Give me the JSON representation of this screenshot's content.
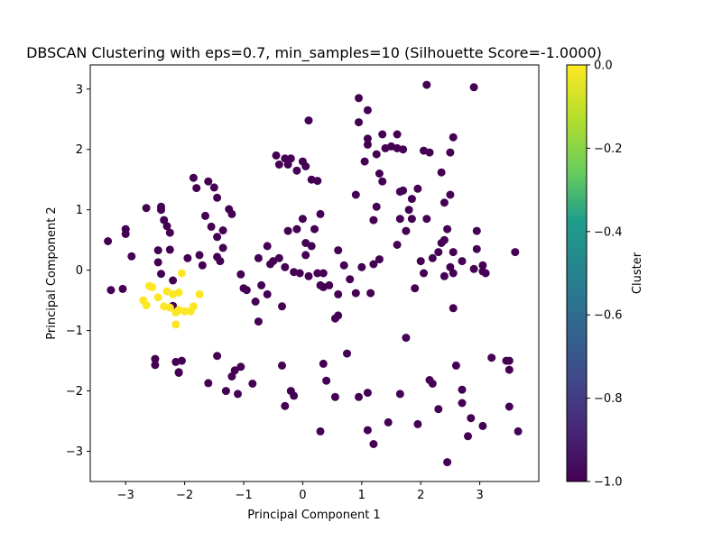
{
  "chart_data": {
    "type": "scatter",
    "title": "DBSCAN Clustering with eps=0.7, min_samples=10 (Silhouette Score=-1.0000)",
    "xlabel": "Principal Component 1",
    "ylabel": "Principal Component 2",
    "xlim": [
      -3.6,
      4.0
    ],
    "ylim": [
      -3.5,
      3.4
    ],
    "xticks": [
      -3,
      -2,
      -1,
      0,
      1,
      2,
      3
    ],
    "xtick_labels": [
      "−3",
      "−2",
      "−1",
      "0",
      "1",
      "2",
      "3"
    ],
    "yticks": [
      -3,
      -2,
      -1,
      0,
      1,
      2,
      3
    ],
    "ytick_labels": [
      "−3",
      "−2",
      "−1",
      "0",
      "1",
      "2",
      "3"
    ],
    "grid": false,
    "colorbar": {
      "label": "Cluster",
      "range": [
        -1.0,
        0.0
      ],
      "ticks": [
        -1.0,
        -0.8,
        -0.6,
        -0.4,
        -0.2,
        0.0
      ],
      "tick_labels": [
        "−1.0",
        "−0.8",
        "−0.6",
        "−0.4",
        "−0.2",
        "0.0"
      ],
      "colormap": [
        "#440154",
        "#482777",
        "#3f4a8a",
        "#31678e",
        "#26838f",
        "#1f9d8a",
        "#6cce5a",
        "#b6de2b",
        "#fee825"
      ]
    },
    "colors": {
      "noise": "#440154",
      "cluster0": "#fde725"
    },
    "series": [
      {
        "cluster": -1,
        "color": "#440154",
        "points": [
          [
            -3.3,
            0.48
          ],
          [
            -3.25,
            -0.33
          ],
          [
            -3.05,
            -0.31
          ],
          [
            -3.0,
            0.6
          ],
          [
            -3.0,
            0.68
          ],
          [
            -2.9,
            0.23
          ],
          [
            -2.65,
            1.03
          ],
          [
            -2.5,
            -1.47
          ],
          [
            -2.5,
            -1.57
          ],
          [
            -2.45,
            0.33
          ],
          [
            -2.45,
            0.13
          ],
          [
            -2.4,
            1.05
          ],
          [
            -2.4,
            1.0
          ],
          [
            -2.4,
            -0.06
          ],
          [
            -2.35,
            0.83
          ],
          [
            -2.3,
            0.73
          ],
          [
            -2.25,
            0.62
          ],
          [
            -2.25,
            0.34
          ],
          [
            -2.2,
            -0.17
          ],
          [
            -2.2,
            -0.59
          ],
          [
            -2.15,
            -1.52
          ],
          [
            -2.1,
            -1.7
          ],
          [
            -2.1,
            -1.69
          ],
          [
            -2.05,
            -1.5
          ],
          [
            -1.95,
            0.2
          ],
          [
            -1.85,
            1.53
          ],
          [
            -1.8,
            1.36
          ],
          [
            -1.75,
            0.25
          ],
          [
            -1.7,
            0.08
          ],
          [
            -1.65,
            0.9
          ],
          [
            -1.6,
            1.47
          ],
          [
            -1.6,
            -1.87
          ],
          [
            -1.55,
            0.72
          ],
          [
            -1.5,
            1.37
          ],
          [
            -1.45,
            1.2
          ],
          [
            -1.45,
            0.55
          ],
          [
            -1.45,
            -1.42
          ],
          [
            -1.45,
            0.22
          ],
          [
            -1.4,
            0.15
          ],
          [
            -1.35,
            0.37
          ],
          [
            -1.35,
            0.66
          ],
          [
            -1.3,
            -2.0
          ],
          [
            -1.25,
            1.01
          ],
          [
            -1.2,
            0.93
          ],
          [
            -1.2,
            -1.76
          ],
          [
            -1.15,
            -1.66
          ],
          [
            -1.1,
            -2.05
          ],
          [
            -1.05,
            -1.6
          ],
          [
            -1.05,
            -0.07
          ],
          [
            -1.0,
            -0.3
          ],
          [
            -0.95,
            -0.33
          ],
          [
            -0.85,
            -1.88
          ],
          [
            -0.8,
            -0.52
          ],
          [
            -0.75,
            -0.85
          ],
          [
            -0.75,
            0.2
          ],
          [
            -0.7,
            -0.25
          ],
          [
            -0.6,
            -0.4
          ],
          [
            -0.6,
            0.4
          ],
          [
            -0.55,
            0.1
          ],
          [
            -0.5,
            0.15
          ],
          [
            -0.45,
            1.9
          ],
          [
            -0.4,
            1.75
          ],
          [
            -0.4,
            0.2
          ],
          [
            -0.35,
            -1.58
          ],
          [
            -0.35,
            -0.6
          ],
          [
            -0.3,
            1.85
          ],
          [
            -0.3,
            -2.25
          ],
          [
            -0.25,
            1.75
          ],
          [
            -0.25,
            0.65
          ],
          [
            -0.2,
            1.85
          ],
          [
            -0.2,
            -2.0
          ],
          [
            -0.15,
            -2.08
          ],
          [
            -0.15,
            -0.03
          ],
          [
            -0.1,
            1.65
          ],
          [
            -0.1,
            0.68
          ],
          [
            -0.05,
            -0.05
          ],
          [
            0.0,
            1.8
          ],
          [
            0.0,
            0.85
          ],
          [
            0.05,
            1.72
          ],
          [
            0.05,
            0.45
          ],
          [
            0.05,
            0.25
          ],
          [
            0.1,
            2.48
          ],
          [
            0.1,
            -0.1
          ],
          [
            0.15,
            1.5
          ],
          [
            0.15,
            0.4
          ],
          [
            0.2,
            0.68
          ],
          [
            0.25,
            1.48
          ],
          [
            0.3,
            -0.25
          ],
          [
            0.3,
            0.93
          ],
          [
            0.3,
            -2.67
          ],
          [
            0.35,
            -1.55
          ],
          [
            0.35,
            -0.28
          ],
          [
            0.35,
            -0.05
          ],
          [
            0.4,
            -1.83
          ],
          [
            0.45,
            -0.25
          ],
          [
            0.55,
            -0.8
          ],
          [
            0.55,
            -2.1
          ],
          [
            0.6,
            0.33
          ],
          [
            0.6,
            -0.75
          ],
          [
            0.6,
            -0.4
          ],
          [
            0.7,
            0.08
          ],
          [
            0.75,
            -1.38
          ],
          [
            0.8,
            -0.15
          ],
          [
            0.9,
            1.25
          ],
          [
            0.9,
            -0.38
          ],
          [
            0.95,
            -2.1
          ],
          [
            0.95,
            2.45
          ],
          [
            0.95,
            2.85
          ],
          [
            1.0,
            0.05
          ],
          [
            1.05,
            1.8
          ],
          [
            1.1,
            2.65
          ],
          [
            1.1,
            2.08
          ],
          [
            1.1,
            2.18
          ],
          [
            1.1,
            -2.65
          ],
          [
            1.1,
            -2.03
          ],
          [
            1.15,
            -0.38
          ],
          [
            1.2,
            -2.88
          ],
          [
            1.2,
            0.83
          ],
          [
            1.2,
            0.1
          ],
          [
            1.25,
            1.05
          ],
          [
            1.25,
            1.92
          ],
          [
            1.3,
            0.18
          ],
          [
            1.3,
            1.6
          ],
          [
            1.35,
            2.25
          ],
          [
            1.35,
            1.47
          ],
          [
            1.4,
            2.02
          ],
          [
            1.45,
            -2.52
          ],
          [
            1.5,
            2.05
          ],
          [
            1.6,
            2.25
          ],
          [
            1.6,
            2.02
          ],
          [
            1.6,
            0.42
          ],
          [
            1.65,
            0.85
          ],
          [
            1.65,
            1.3
          ],
          [
            1.65,
            -2.05
          ],
          [
            1.7,
            2.0
          ],
          [
            1.7,
            1.32
          ],
          [
            1.75,
            0.65
          ],
          [
            1.75,
            -1.12
          ],
          [
            1.8,
            1.0
          ],
          [
            1.85,
            0.85
          ],
          [
            1.85,
            1.18
          ],
          [
            1.9,
            -0.3
          ],
          [
            1.95,
            1.35
          ],
          [
            1.95,
            -2.55
          ],
          [
            2.0,
            0.15
          ],
          [
            2.05,
            -0.05
          ],
          [
            2.05,
            1.98
          ],
          [
            2.1,
            0.85
          ],
          [
            2.1,
            3.07
          ],
          [
            2.15,
            1.95
          ],
          [
            2.15,
            -1.82
          ],
          [
            2.2,
            -1.88
          ],
          [
            2.2,
            0.2
          ],
          [
            2.3,
            0.3
          ],
          [
            2.3,
            -2.3
          ],
          [
            2.35,
            1.62
          ],
          [
            2.35,
            0.45
          ],
          [
            2.4,
            0.5
          ],
          [
            2.4,
            1.12
          ],
          [
            2.4,
            -0.1
          ],
          [
            2.45,
            0.68
          ],
          [
            2.5,
            1.25
          ],
          [
            2.5,
            1.95
          ],
          [
            2.45,
            -3.18
          ],
          [
            2.5,
            0.05
          ],
          [
            2.55,
            2.2
          ],
          [
            2.55,
            0.3
          ],
          [
            2.55,
            -0.63
          ],
          [
            2.55,
            -0.05
          ],
          [
            2.6,
            -1.58
          ],
          [
            2.7,
            0.15
          ],
          [
            2.7,
            -1.98
          ],
          [
            2.7,
            -2.2
          ],
          [
            2.8,
            -2.75
          ],
          [
            2.85,
            -2.45
          ],
          [
            2.9,
            3.03
          ],
          [
            2.9,
            0.02
          ],
          [
            2.95,
            0.35
          ],
          [
            2.95,
            0.65
          ],
          [
            3.05,
            0.08
          ],
          [
            3.05,
            -0.02
          ],
          [
            3.05,
            -2.58
          ],
          [
            3.1,
            -0.05
          ],
          [
            3.2,
            -1.45
          ],
          [
            3.45,
            -1.5
          ],
          [
            3.5,
            -2.26
          ],
          [
            3.5,
            -1.5
          ],
          [
            3.5,
            -1.65
          ],
          [
            3.6,
            0.3
          ],
          [
            3.65,
            -2.67
          ],
          [
            -0.3,
            0.05
          ],
          [
            0.25,
            -0.05
          ]
        ]
      },
      {
        "cluster": 0,
        "color": "#fde725",
        "points": [
          [
            -2.55,
            -0.28
          ],
          [
            -2.6,
            -0.26
          ],
          [
            -2.7,
            -0.5
          ],
          [
            -2.65,
            -0.58
          ],
          [
            -2.45,
            -0.45
          ],
          [
            -2.35,
            -0.6
          ],
          [
            -2.25,
            -0.62
          ],
          [
            -2.2,
            -0.4
          ],
          [
            -2.15,
            -0.7
          ],
          [
            -2.15,
            -0.9
          ],
          [
            -2.1,
            -0.66
          ],
          [
            -2.1,
            -0.37
          ],
          [
            -2.05,
            -0.05
          ],
          [
            -2.0,
            -0.68
          ],
          [
            -1.9,
            -0.68
          ],
          [
            -1.85,
            -0.6
          ],
          [
            -1.75,
            -0.4
          ],
          [
            -2.3,
            -0.35
          ]
        ]
      }
    ]
  }
}
